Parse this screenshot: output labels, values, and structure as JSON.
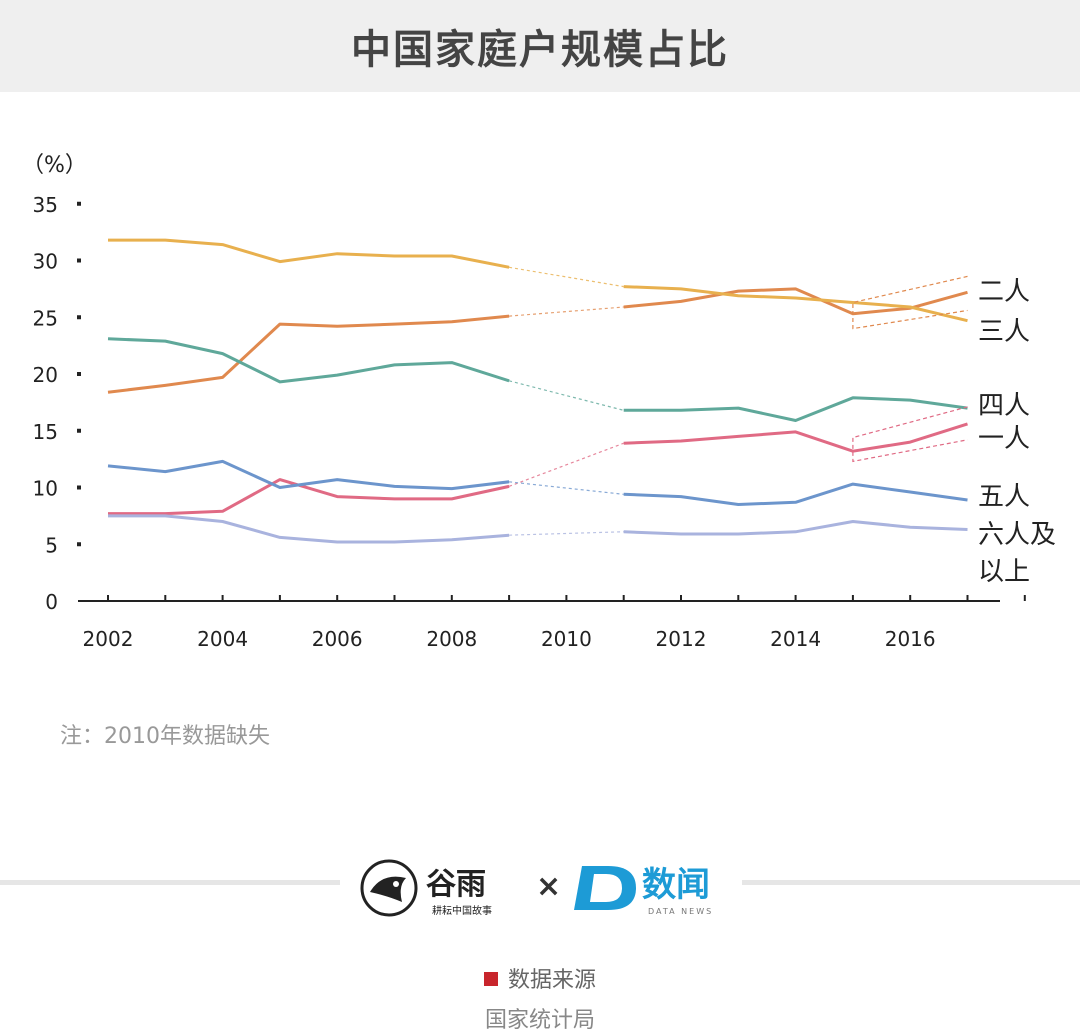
{
  "title": "中国家庭户规模占比",
  "chart_data": {
    "type": "line",
    "title": "中国家庭户规模占比",
    "ylabel": "（%）",
    "ylim": [
      0,
      35
    ],
    "yticks": [
      0,
      5,
      10,
      15,
      20,
      25,
      30,
      35
    ],
    "xlim": [
      2002,
      2017
    ],
    "xticks": [
      2002,
      2004,
      2006,
      2008,
      2010,
      2012,
      2014,
      2016
    ],
    "x": [
      2002,
      2003,
      2004,
      2005,
      2006,
      2007,
      2008,
      2009,
      2011,
      2012,
      2013,
      2014,
      2015,
      2016,
      2017
    ],
    "gap": [
      2009,
      2011
    ],
    "series": [
      {
        "name": "二人",
        "color": "#e0894e",
        "values": [
          18.4,
          19.0,
          19.7,
          24.4,
          24.2,
          24.4,
          24.6,
          25.1,
          25.9,
          26.4,
          27.3,
          27.5,
          25.3,
          25.8,
          27.2
        ]
      },
      {
        "name": "三人",
        "color": "#e8b04e",
        "values": [
          31.8,
          31.8,
          31.4,
          29.9,
          30.6,
          30.4,
          30.4,
          29.4,
          27.7,
          27.5,
          26.9,
          26.7,
          26.3,
          25.9,
          24.7
        ]
      },
      {
        "name": "四人",
        "color": "#5fa89a",
        "values": [
          23.1,
          22.9,
          21.8,
          19.3,
          19.9,
          20.8,
          21.0,
          19.4,
          16.8,
          16.8,
          17.0,
          15.9,
          17.9,
          17.7,
          17.0
        ]
      },
      {
        "name": "一人",
        "color": "#e06a84",
        "values": [
          7.7,
          7.7,
          7.9,
          10.7,
          9.2,
          9.0,
          9.0,
          10.1,
          13.9,
          14.1,
          14.5,
          14.9,
          13.2,
          14.0,
          15.6
        ]
      },
      {
        "name": "五人",
        "color": "#6c95cc",
        "values": [
          11.9,
          11.4,
          12.3,
          10.0,
          10.7,
          10.1,
          9.9,
          10.5,
          9.4,
          9.2,
          8.5,
          8.7,
          10.3,
          9.6,
          8.9
        ]
      },
      {
        "name": "六人及以上",
        "color": "#a9b3de",
        "values": [
          7.5,
          7.5,
          7.0,
          5.6,
          5.2,
          5.2,
          5.4,
          5.8,
          6.1,
          5.9,
          5.9,
          6.1,
          7.0,
          6.5,
          6.3
        ]
      }
    ],
    "legend_labels": [
      "二人",
      "三人",
      "四人",
      "一人",
      "五人",
      "六人及",
      "以上"
    ]
  },
  "note": "注：2010年数据缺失",
  "logos": {
    "left_brand": "谷雨",
    "left_sub": "耕耘中国故事",
    "cross": "×",
    "right_brand": "数闻",
    "right_sub": "DATA NEWS"
  },
  "source_label": "数据来源",
  "source_name": "国家统计局"
}
